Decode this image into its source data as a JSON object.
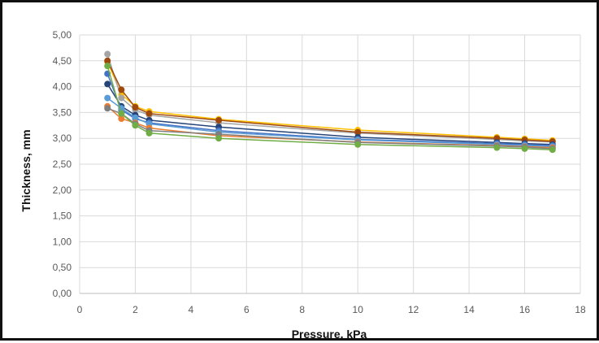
{
  "chart_data": {
    "type": "line",
    "xlabel": "Pressure, kPa",
    "ylabel": "Thickness, mm",
    "xlim": [
      0,
      18
    ],
    "ylim": [
      0,
      5
    ],
    "x_ticks": [
      "0",
      "2",
      "4",
      "6",
      "8",
      "10",
      "12",
      "14",
      "16",
      "18"
    ],
    "y_ticks": [
      "0,00",
      "0,50",
      "1,00",
      "1,50",
      "2,00",
      "2,50",
      "3,00",
      "3,50",
      "4,00",
      "4,50",
      "5,00"
    ],
    "grid": "both",
    "legend": "none",
    "x": [
      1,
      1.5,
      2,
      2.5,
      5,
      10,
      15,
      16,
      17
    ],
    "series": [
      {
        "color": "#FFC000",
        "values": [
          4.48,
          3.85,
          3.62,
          3.52,
          3.37,
          3.16,
          3.02,
          2.99,
          2.96
        ]
      },
      {
        "color": "#A5A5A5",
        "values": [
          4.63,
          3.78,
          3.55,
          3.45,
          3.3,
          3.1,
          2.98,
          2.95,
          2.93
        ]
      },
      {
        "color": "#9E480E",
        "values": [
          4.5,
          3.94,
          3.6,
          3.48,
          3.35,
          3.12,
          3.0,
          2.97,
          2.94
        ]
      },
      {
        "color": "#264478",
        "values": [
          4.05,
          3.62,
          3.45,
          3.35,
          3.22,
          3.02,
          2.92,
          2.9,
          2.88
        ]
      },
      {
        "color": "#4472C4",
        "values": [
          4.25,
          3.55,
          3.38,
          3.3,
          3.15,
          2.98,
          2.9,
          2.88,
          2.86
        ]
      },
      {
        "color": "#5B9BD5",
        "values": [
          3.78,
          3.58,
          3.4,
          3.28,
          3.12,
          2.97,
          2.88,
          2.86,
          2.84
        ]
      },
      {
        "color": "#ED7D31",
        "values": [
          3.62,
          3.38,
          3.3,
          3.2,
          3.05,
          2.93,
          2.86,
          2.84,
          2.82
        ]
      },
      {
        "color": "#7F7F7F",
        "values": [
          3.58,
          3.48,
          3.28,
          3.15,
          3.08,
          2.92,
          2.85,
          2.83,
          2.8
        ]
      },
      {
        "color": "#70AD47",
        "values": [
          4.4,
          3.48,
          3.25,
          3.1,
          3.0,
          2.88,
          2.82,
          2.8,
          2.78
        ]
      }
    ]
  }
}
